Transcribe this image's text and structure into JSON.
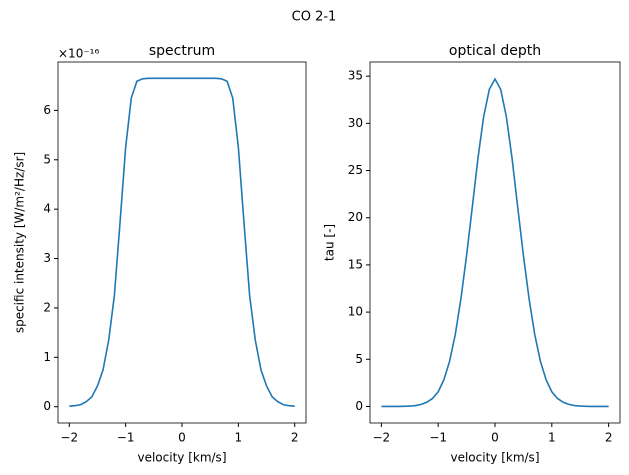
{
  "title": "CO 2-1",
  "chart_data": [
    {
      "type": "line",
      "title": "spectrum",
      "xlabel": "velocity [km/s]",
      "ylabel": "specific intensity [W/m²/Hz/sr]",
      "y_offset_label": "×10⁻¹⁶",
      "x": [
        -2,
        -1.9,
        -1.8,
        -1.7,
        -1.6,
        -1.5,
        -1.4,
        -1.3,
        -1.2,
        -1.1,
        -1,
        -0.9,
        -0.8,
        -0.7,
        -0.6,
        -0.5,
        -0.4,
        -0.3,
        -0.2,
        -0.1,
        0,
        0.1,
        0.2,
        0.3,
        0.4,
        0.5,
        0.6,
        0.7,
        0.8,
        0.9,
        1,
        1.1,
        1.2,
        1.3,
        1.4,
        1.5,
        1.6,
        1.7,
        1.8,
        1.9,
        2
      ],
      "values": [
        0.01,
        0.02,
        0.04,
        0.1,
        0.2,
        0.42,
        0.75,
        1.35,
        2.25,
        3.72,
        5.25,
        6.25,
        6.59,
        6.64,
        6.65,
        6.65,
        6.65,
        6.65,
        6.65,
        6.65,
        6.65,
        6.65,
        6.65,
        6.65,
        6.65,
        6.65,
        6.65,
        6.64,
        6.59,
        6.25,
        5.25,
        3.72,
        2.25,
        1.35,
        0.75,
        0.42,
        0.2,
        0.1,
        0.04,
        0.02,
        0.01
      ],
      "color": "#1f77b4",
      "xlim": [
        -2.2,
        2.2
      ],
      "ylim": [
        -0.33,
        6.98
      ],
      "xticks": [
        {
          "value": -2,
          "label": "−2"
        },
        {
          "value": -1,
          "label": "−1"
        },
        0,
        1,
        2
      ],
      "yticks": [
        0,
        1,
        2,
        3,
        4,
        5,
        6
      ]
    },
    {
      "type": "line",
      "title": "optical depth",
      "xlabel": "velocity [km/s]",
      "ylabel": "tau [-]",
      "x": [
        -2,
        -1.9,
        -1.8,
        -1.7,
        -1.6,
        -1.5,
        -1.4,
        -1.3,
        -1.2,
        -1.1,
        -1,
        -0.9,
        -0.8,
        -0.7,
        -0.6,
        -0.5,
        -0.4,
        -0.3,
        -0.2,
        -0.1,
        0,
        0.1,
        0.2,
        0.3,
        0.4,
        0.5,
        0.6,
        0.7,
        0.8,
        0.9,
        1,
        1.1,
        1.2,
        1.3,
        1.4,
        1.5,
        1.6,
        1.7,
        1.8,
        1.9,
        2
      ],
      "values": [
        0,
        0,
        0,
        0.01,
        0.02,
        0.04,
        0.1,
        0.22,
        0.45,
        0.85,
        1.56,
        2.82,
        4.77,
        7.6,
        11.4,
        16,
        21.1,
        26.3,
        30.7,
        33.6,
        34.7,
        33.6,
        30.7,
        26.3,
        21.1,
        16,
        11.4,
        7.6,
        4.77,
        2.82,
        1.56,
        0.85,
        0.45,
        0.22,
        0.1,
        0.04,
        0.02,
        0.01,
        0,
        0,
        0
      ],
      "color": "#1f77b4",
      "xlim": [
        -2.2,
        2.2
      ],
      "ylim": [
        -1.75,
        36.5
      ],
      "xticks": [
        {
          "value": -2,
          "label": "−2"
        },
        {
          "value": -1,
          "label": "−1"
        },
        0,
        1,
        2
      ],
      "yticks": [
        0,
        5,
        10,
        15,
        20,
        25,
        30,
        35
      ]
    }
  ]
}
